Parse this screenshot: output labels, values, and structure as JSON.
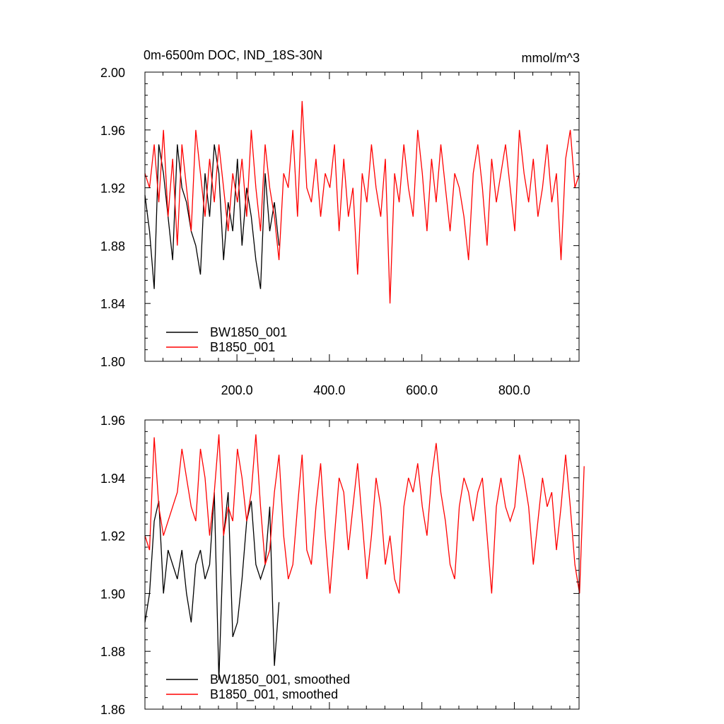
{
  "chart_data": [
    {
      "type": "line",
      "title_left": "0m-6500m DOC, IND_18S-30N",
      "title_right": "mmol/m^3",
      "xlim": [
        1,
        940
      ],
      "ylim": [
        1.8,
        2.0
      ],
      "x_ticks": [
        200,
        400,
        600,
        800
      ],
      "x_tick_labels": [
        "200.0",
        "400.0",
        "600.0",
        "800.0"
      ],
      "y_ticks": [
        1.8,
        1.84,
        1.88,
        1.92,
        1.96,
        2.0
      ],
      "y_tick_labels": [
        "1.80",
        "1.84",
        "1.88",
        "1.92",
        "1.96",
        "2.00"
      ],
      "grid": false,
      "legend_position": "bottom-left",
      "series": [
        {
          "name": "BW1850_001",
          "color": "#000000",
          "x_start": 1,
          "x_step": 10,
          "values": [
            1.915,
            1.89,
            1.85,
            1.95,
            1.93,
            1.9,
            1.87,
            1.95,
            1.92,
            1.91,
            1.89,
            1.88,
            1.86,
            1.93,
            1.9,
            1.95,
            1.93,
            1.87,
            1.91,
            1.89,
            1.94,
            1.88,
            1.92,
            1.9,
            1.87,
            1.85,
            1.93,
            1.89,
            1.91,
            1.88
          ]
        },
        {
          "name": "B1850_001",
          "color": "#ff0000",
          "x_start": 1,
          "x_step": 10,
          "values": [
            1.93,
            1.92,
            1.95,
            1.91,
            1.96,
            1.9,
            1.94,
            1.88,
            1.95,
            1.92,
            1.89,
            1.96,
            1.93,
            1.9,
            1.94,
            1.91,
            1.95,
            1.92,
            1.89,
            1.93,
            1.91,
            1.94,
            1.9,
            1.96,
            1.92,
            1.89,
            1.95,
            1.92,
            1.9,
            1.87,
            1.93,
            1.92,
            1.96,
            1.9,
            1.98,
            1.92,
            1.91,
            1.94,
            1.9,
            1.93,
            1.92,
            1.95,
            1.89,
            1.94,
            1.9,
            1.92,
            1.86,
            1.93,
            1.91,
            1.95,
            1.92,
            1.9,
            1.94,
            1.84,
            1.93,
            1.91,
            1.95,
            1.92,
            1.9,
            1.96,
            1.93,
            1.89,
            1.94,
            1.91,
            1.95,
            1.92,
            1.89,
            1.93,
            1.92,
            1.9,
            1.87,
            1.93,
            1.95,
            1.92,
            1.88,
            1.94,
            1.91,
            1.93,
            1.95,
            1.92,
            1.89,
            1.96,
            1.93,
            1.91,
            1.94,
            1.9,
            1.92,
            1.95,
            1.91,
            1.93,
            1.87,
            1.94,
            1.96,
            1.92,
            1.93
          ]
        }
      ]
    },
    {
      "type": "line",
      "xlim": [
        1,
        940
      ],
      "ylim": [
        1.86,
        1.96
      ],
      "x_ticks": [
        200,
        400,
        600,
        800
      ],
      "y_ticks": [
        1.86,
        1.88,
        1.9,
        1.92,
        1.94,
        1.96
      ],
      "y_tick_labels": [
        "1.86",
        "1.88",
        "1.90",
        "1.92",
        "1.94",
        "1.96"
      ],
      "grid": false,
      "legend_position": "bottom-left",
      "series": [
        {
          "name": "BW1850_001, smoothed",
          "color": "#000000",
          "x_start": 1,
          "x_step": 10,
          "values": [
            1.89,
            1.9,
            1.925,
            1.932,
            1.9,
            1.915,
            1.91,
            1.905,
            1.915,
            1.9,
            1.89,
            1.91,
            1.915,
            1.905,
            1.91,
            1.935,
            1.87,
            1.92,
            1.935,
            1.885,
            1.89,
            1.905,
            1.925,
            1.932,
            1.91,
            1.905,
            1.91,
            1.93,
            1.875,
            1.897
          ]
        },
        {
          "name": "B1850_001, smoothed",
          "color": "#ff0000",
          "x_start": 1,
          "x_step": 10,
          "values": [
            1.92,
            1.915,
            1.954,
            1.93,
            1.92,
            1.925,
            1.93,
            1.935,
            1.95,
            1.94,
            1.93,
            1.925,
            1.95,
            1.94,
            1.92,
            1.935,
            1.955,
            1.92,
            1.93,
            1.925,
            1.95,
            1.94,
            1.925,
            1.935,
            1.955,
            1.93,
            1.91,
            1.915,
            1.935,
            1.948,
            1.92,
            1.905,
            1.91,
            1.93,
            1.948,
            1.915,
            1.91,
            1.93,
            1.945,
            1.92,
            1.9,
            1.92,
            1.94,
            1.935,
            1.915,
            1.93,
            1.945,
            1.925,
            1.905,
            1.92,
            1.94,
            1.93,
            1.91,
            1.92,
            1.905,
            1.9,
            1.93,
            1.94,
            1.935,
            1.945,
            1.93,
            1.92,
            1.94,
            1.952,
            1.935,
            1.925,
            1.91,
            1.905,
            1.93,
            1.94,
            1.935,
            1.925,
            1.935,
            1.94,
            1.92,
            1.9,
            1.93,
            1.94,
            1.93,
            1.925,
            1.93,
            1.948,
            1.94,
            1.93,
            1.91,
            1.925,
            1.94,
            1.93,
            1.935,
            1.915,
            1.93,
            1.948,
            1.93,
            1.91,
            1.9,
            1.944
          ]
        }
      ]
    }
  ]
}
